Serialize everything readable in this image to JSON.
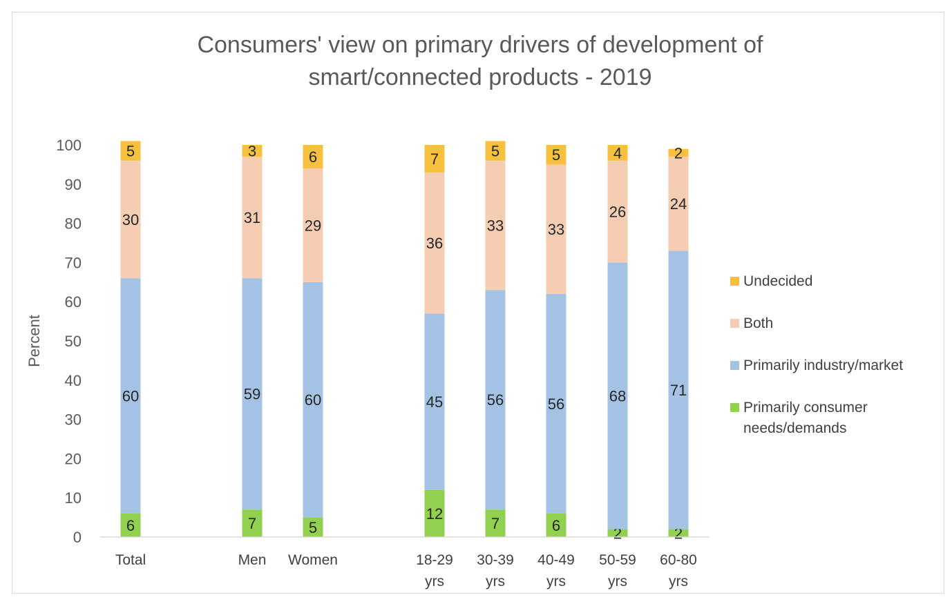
{
  "chart_data": {
    "type": "bar",
    "stacked": true,
    "title_lines": [
      "Consumers' view on primary drivers of development of",
      "smart/connected products - 2019"
    ],
    "title": "Consumers' view on primary drivers of development of smart/connected products - 2019",
    "xlabel": "",
    "ylabel": "Percent",
    "ylim": [
      0,
      100
    ],
    "yticks": [
      0,
      10,
      20,
      30,
      40,
      50,
      60,
      70,
      80,
      90,
      100
    ],
    "grid": false,
    "legend_position": "right",
    "categories": [
      [
        "Total"
      ],
      [
        "Men"
      ],
      [
        "Women"
      ],
      [
        "18-29",
        "yrs"
      ],
      [
        "30-39",
        "yrs"
      ],
      [
        "40-49",
        "yrs"
      ],
      [
        "50-59",
        "yrs"
      ],
      [
        "60-80",
        "yrs"
      ]
    ],
    "series": [
      {
        "name": "Primarily consumer needs/demands",
        "legend_lines": [
          "Primarily consumer",
          "needs/demands"
        ],
        "color": "#92d050",
        "values": [
          6,
          7,
          5,
          12,
          7,
          6,
          2,
          2
        ]
      },
      {
        "name": "Primarily industry/market",
        "legend_lines": [
          "Primarily industry/market"
        ],
        "color": "#a4c2e4",
        "values": [
          60,
          59,
          60,
          45,
          56,
          56,
          68,
          71
        ]
      },
      {
        "name": "Both",
        "legend_lines": [
          "Both"
        ],
        "color": "#f4cdb3",
        "values": [
          30,
          31,
          29,
          36,
          33,
          33,
          26,
          24
        ]
      },
      {
        "name": "Undecided",
        "legend_lines": [
          "Undecided"
        ],
        "color": "#f7c03e",
        "values": [
          5,
          3,
          6,
          7,
          5,
          5,
          4,
          2
        ]
      }
    ]
  }
}
